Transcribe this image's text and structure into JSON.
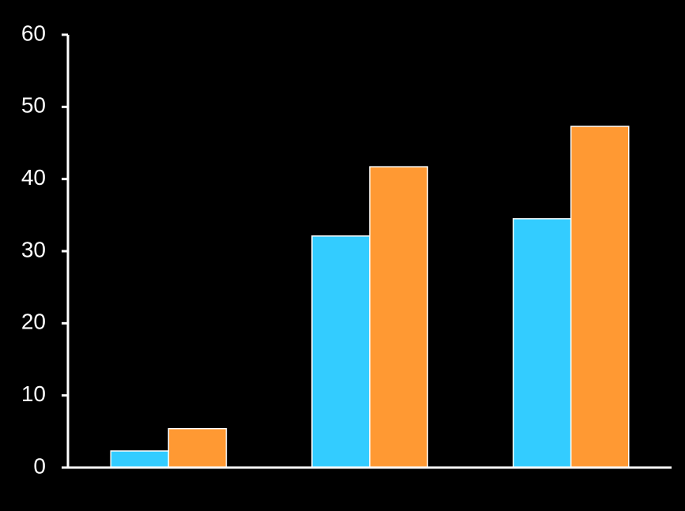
{
  "chart_data": {
    "type": "bar",
    "categories": [
      null,
      null,
      null
    ],
    "series": [
      {
        "color": "#33ccff",
        "values": [
          2.3,
          32.1,
          34.5
        ]
      },
      {
        "color": "#ff9933",
        "values": [
          5.4,
          41.7,
          47.3
        ]
      }
    ],
    "ylim": [
      0,
      60
    ],
    "yticks": [
      0,
      10,
      20,
      30,
      40,
      50,
      60
    ],
    "grid": false
  }
}
